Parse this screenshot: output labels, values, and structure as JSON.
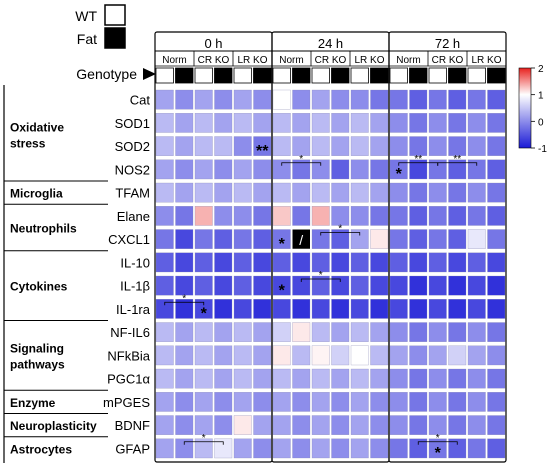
{
  "legend": {
    "items": [
      {
        "label": "WT",
        "fill": "#ffffff"
      },
      {
        "label": "Fat",
        "fill": "#000000"
      }
    ],
    "genotype_label": "Genotype"
  },
  "colorbar": {
    "ticks": [
      "2",
      "1",
      "0",
      "-1"
    ],
    "min": -1,
    "max": 2,
    "colors": {
      "low": "#1a1ad6",
      "mid": "#ffffff",
      "high": "#e8221f"
    }
  },
  "groups": [
    "Norm",
    "CR KO",
    "LR KO"
  ],
  "chart_data": {
    "type": "heatmap",
    "title": "",
    "panels": [
      "0 h",
      "24 h",
      "72 h"
    ],
    "columns": [
      "Norm WT",
      "Norm Fat",
      "CR KO WT",
      "CR KO Fat",
      "LR KO WT",
      "LR KO Fat"
    ],
    "rows": [
      "Cat",
      "SOD1",
      "SOD2",
      "NOS2",
      "TFAM",
      "Elane",
      "CXCL1",
      "IL-10",
      "IL-1β",
      "IL-1ra",
      "NF-IL6",
      "NFkBia",
      "PGC1α",
      "mPGES",
      "BDNF",
      "GFAP"
    ],
    "categories": [
      {
        "name": "Oxidative\nstress",
        "rows": [
          0,
          3
        ]
      },
      {
        "name": "Microglia",
        "rows": [
          4,
          4
        ]
      },
      {
        "name": "Neutrophils",
        "rows": [
          5,
          6
        ]
      },
      {
        "name": "Cytokines",
        "rows": [
          7,
          9
        ]
      },
      {
        "name": "Signaling\npathways",
        "rows": [
          10,
          12
        ]
      },
      {
        "name": "Enzyme",
        "rows": [
          13,
          13
        ]
      },
      {
        "name": "Neuroplasticity",
        "rows": [
          14,
          14
        ]
      },
      {
        "name": "Astrocytes",
        "rows": [
          15,
          15
        ]
      }
    ],
    "values": {
      "0 h": [
        [
          -0.4,
          -0.5,
          -0.4,
          -0.5,
          -0.4,
          -0.5
        ],
        [
          -0.3,
          -0.4,
          -0.3,
          -0.4,
          -0.3,
          -0.4
        ],
        [
          -0.3,
          -0.4,
          -0.3,
          -0.3,
          -0.5,
          -0.6
        ],
        [
          -0.4,
          -0.5,
          -0.4,
          -0.5,
          -0.4,
          -0.5
        ],
        [
          -0.3,
          -0.4,
          -0.3,
          -0.4,
          -0.3,
          -0.4
        ],
        [
          -0.5,
          -0.6,
          0.7,
          -0.5,
          -0.5,
          -0.6
        ],
        [
          -0.6,
          -0.8,
          -0.6,
          -0.7,
          -0.6,
          -0.7
        ],
        [
          -0.7,
          -0.8,
          -0.7,
          -0.8,
          -0.7,
          -0.8
        ],
        [
          -0.7,
          -0.8,
          -0.7,
          -0.8,
          -0.7,
          -0.8
        ],
        [
          -0.8,
          -0.9,
          -0.8,
          -0.9,
          -0.8,
          -0.9
        ],
        [
          -0.3,
          -0.4,
          -0.3,
          -0.4,
          -0.3,
          -0.4
        ],
        [
          -0.3,
          -0.4,
          -0.3,
          -0.4,
          -0.3,
          -0.4
        ],
        [
          -0.3,
          -0.4,
          -0.3,
          -0.4,
          -0.3,
          -0.4
        ],
        [
          -0.4,
          -0.5,
          -0.4,
          -0.5,
          -0.4,
          -0.5
        ],
        [
          -0.4,
          -0.5,
          -0.4,
          -0.5,
          0.2,
          -0.4
        ],
        [
          -0.4,
          -0.5,
          -0.3,
          -0.1,
          -0.4,
          -0.5
        ]
      ],
      "24 h": [
        [
          0.0,
          -0.5,
          -0.4,
          -0.5,
          -0.5,
          -0.6
        ],
        [
          -0.3,
          -0.4,
          -0.3,
          -0.4,
          -0.3,
          -0.4
        ],
        [
          -0.3,
          -0.4,
          -0.3,
          -0.4,
          -0.3,
          -0.4
        ],
        [
          -0.5,
          -0.6,
          -0.5,
          -0.7,
          -0.5,
          -0.6
        ],
        [
          -0.3,
          -0.4,
          -0.3,
          -0.4,
          -0.3,
          -0.4
        ],
        [
          0.5,
          -0.6,
          0.7,
          -0.5,
          -0.5,
          -0.6
        ],
        [
          -0.6,
          null,
          -0.6,
          -0.7,
          -0.4,
          0.2
        ],
        [
          -0.7,
          -0.8,
          -0.7,
          -0.8,
          -0.7,
          -0.8
        ],
        [
          -0.8,
          -0.8,
          -0.7,
          -0.8,
          -0.7,
          -0.8
        ],
        [
          -0.8,
          -0.9,
          -0.8,
          -0.9,
          -0.8,
          -0.9
        ],
        [
          -0.2,
          0.2,
          -0.3,
          -0.4,
          -0.3,
          -0.4
        ],
        [
          0.2,
          -0.3,
          0.1,
          -0.2,
          0.0,
          -0.3
        ],
        [
          -0.3,
          -0.4,
          -0.3,
          -0.4,
          -0.3,
          -0.4
        ],
        [
          -0.4,
          -0.5,
          -0.4,
          -0.5,
          -0.4,
          -0.5
        ],
        [
          -0.4,
          -0.5,
          -0.4,
          -0.5,
          -0.4,
          -0.5
        ],
        [
          -0.4,
          -0.5,
          -0.4,
          -0.5,
          -0.4,
          -0.5
        ]
      ],
      "72 h": [
        [
          -0.6,
          -0.7,
          -0.6,
          -0.7,
          -0.6,
          -0.7
        ],
        [
          -0.5,
          -0.6,
          -0.5,
          -0.6,
          -0.5,
          -0.6
        ],
        [
          -0.5,
          -0.6,
          -0.5,
          -0.6,
          -0.5,
          -0.6
        ],
        [
          -0.6,
          -0.8,
          -0.6,
          -0.7,
          -0.6,
          -0.7
        ],
        [
          -0.5,
          -0.6,
          -0.5,
          -0.6,
          -0.5,
          -0.6
        ],
        [
          -0.6,
          -0.7,
          -0.6,
          -0.7,
          -0.6,
          -0.7
        ],
        [
          -0.6,
          -0.7,
          -0.6,
          -0.7,
          -0.1,
          -0.6
        ],
        [
          -0.7,
          -0.8,
          -0.7,
          -0.8,
          -0.7,
          -0.8
        ],
        [
          -0.8,
          -0.9,
          -0.8,
          -0.9,
          -0.8,
          -0.9
        ],
        [
          -0.8,
          -0.9,
          -0.8,
          -0.9,
          -0.8,
          -0.9
        ],
        [
          -0.5,
          -0.6,
          -0.5,
          -0.6,
          -0.5,
          -0.6
        ],
        [
          -0.4,
          -0.5,
          -0.4,
          -0.2,
          -0.4,
          -0.5
        ],
        [
          -0.5,
          -0.6,
          -0.5,
          -0.6,
          -0.5,
          -0.6
        ],
        [
          -0.5,
          -0.6,
          -0.5,
          -0.6,
          -0.5,
          -0.6
        ],
        [
          -0.5,
          -0.6,
          -0.5,
          -0.6,
          -0.5,
          -0.6
        ],
        [
          -0.6,
          -0.7,
          -0.6,
          -0.7,
          -0.6,
          -0.7
        ]
      ]
    },
    "significance": [
      {
        "panel": "0 h",
        "row": "SOD2",
        "col": 5,
        "label": "**"
      },
      {
        "panel": "0 h",
        "row": "IL-1ra",
        "bracket": [
          0,
          2
        ],
        "label": "*"
      },
      {
        "panel": "0 h",
        "row": "IL-1ra",
        "col": 2,
        "label": "*"
      },
      {
        "panel": "0 h",
        "row": "GFAP",
        "bracket": [
          1,
          3
        ],
        "label": "*"
      },
      {
        "panel": "24 h",
        "row": "NOS2",
        "bracket": [
          0,
          2
        ],
        "label": "*"
      },
      {
        "panel": "24 h",
        "row": "CXCL1",
        "col": 0,
        "label": "*"
      },
      {
        "panel": "24 h",
        "row": "CXCL1",
        "bracket": [
          2,
          4
        ],
        "label": "*"
      },
      {
        "panel": "24 h",
        "row": "IL-1β",
        "col": 0,
        "label": "*"
      },
      {
        "panel": "24 h",
        "row": "IL-1β",
        "bracket": [
          1,
          3
        ],
        "label": "*"
      },
      {
        "panel": "72 h",
        "row": "NOS2",
        "col": 0,
        "label": "*"
      },
      {
        "panel": "72 h",
        "row": "NOS2",
        "bracket": [
          0,
          2
        ],
        "label": "**"
      },
      {
        "panel": "72 h",
        "row": "NOS2",
        "bracket": [
          2,
          4
        ],
        "label": "**"
      },
      {
        "panel": "72 h",
        "row": "GFAP",
        "bracket": [
          1,
          3
        ],
        "label": "*"
      },
      {
        "panel": "72 h",
        "row": "GFAP",
        "col": 2,
        "label": "*"
      }
    ],
    "missing_cell_label": "/"
  }
}
